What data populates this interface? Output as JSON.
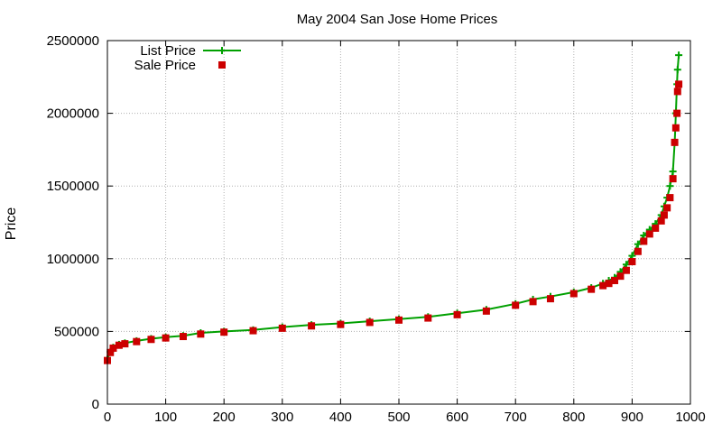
{
  "chart_data": {
    "type": "line",
    "title": "May 2004 San Jose Home Prices",
    "xlabel": "",
    "ylabel": "Price",
    "xlim": [
      0,
      1000
    ],
    "ylim": [
      0,
      2500000
    ],
    "x_ticks": [
      "0",
      "100",
      "200",
      "300",
      "400",
      "500",
      "600",
      "700",
      "800",
      "900",
      "1000"
    ],
    "y_ticks": [
      "0",
      "500000",
      "1000000",
      "1500000",
      "2000000",
      "2500000"
    ],
    "grid": true,
    "legend_position": "top-left",
    "series": [
      {
        "name": "List Price",
        "style": "line-with-plus-markers",
        "color": "#00a000",
        "x": [
          0,
          5,
          10,
          20,
          30,
          50,
          75,
          100,
          130,
          160,
          200,
          250,
          300,
          350,
          400,
          450,
          500,
          550,
          600,
          650,
          700,
          730,
          760,
          800,
          830,
          850,
          860,
          870,
          880,
          890,
          900,
          910,
          920,
          930,
          940,
          950,
          955,
          960,
          965,
          970,
          973,
          975,
          977,
          978,
          980
        ],
        "values": [
          310000,
          360000,
          390000,
          410000,
          420000,
          435000,
          450000,
          460000,
          470000,
          490000,
          500000,
          510000,
          530000,
          545000,
          555000,
          570000,
          585000,
          600000,
          625000,
          650000,
          690000,
          720000,
          740000,
          770000,
          800000,
          830000,
          850000,
          870000,
          910000,
          960000,
          1020000,
          1100000,
          1160000,
          1200000,
          1240000,
          1300000,
          1360000,
          1420000,
          1500000,
          1600000,
          1800000,
          2000000,
          2200000,
          2300000,
          2400000
        ]
      },
      {
        "name": "Sale Price",
        "style": "square-markers",
        "color": "#cc0000",
        "x": [
          0,
          5,
          10,
          20,
          30,
          50,
          75,
          100,
          130,
          160,
          200,
          250,
          300,
          350,
          400,
          450,
          500,
          550,
          600,
          650,
          700,
          730,
          760,
          800,
          830,
          850,
          860,
          870,
          880,
          890,
          900,
          910,
          920,
          930,
          940,
          950,
          955,
          960,
          965,
          970,
          973,
          975,
          977,
          978,
          980
        ],
        "values": [
          300000,
          355000,
          385000,
          405000,
          415000,
          430000,
          445000,
          455000,
          465000,
          482000,
          495000,
          505000,
          522000,
          538000,
          548000,
          562000,
          578000,
          592000,
          615000,
          640000,
          680000,
          705000,
          725000,
          760000,
          790000,
          815000,
          830000,
          850000,
          880000,
          920000,
          980000,
          1050000,
          1120000,
          1170000,
          1210000,
          1260000,
          1300000,
          1350000,
          1420000,
          1550000,
          1800000,
          1900000,
          2000000,
          2150000,
          2200000
        ]
      }
    ]
  }
}
